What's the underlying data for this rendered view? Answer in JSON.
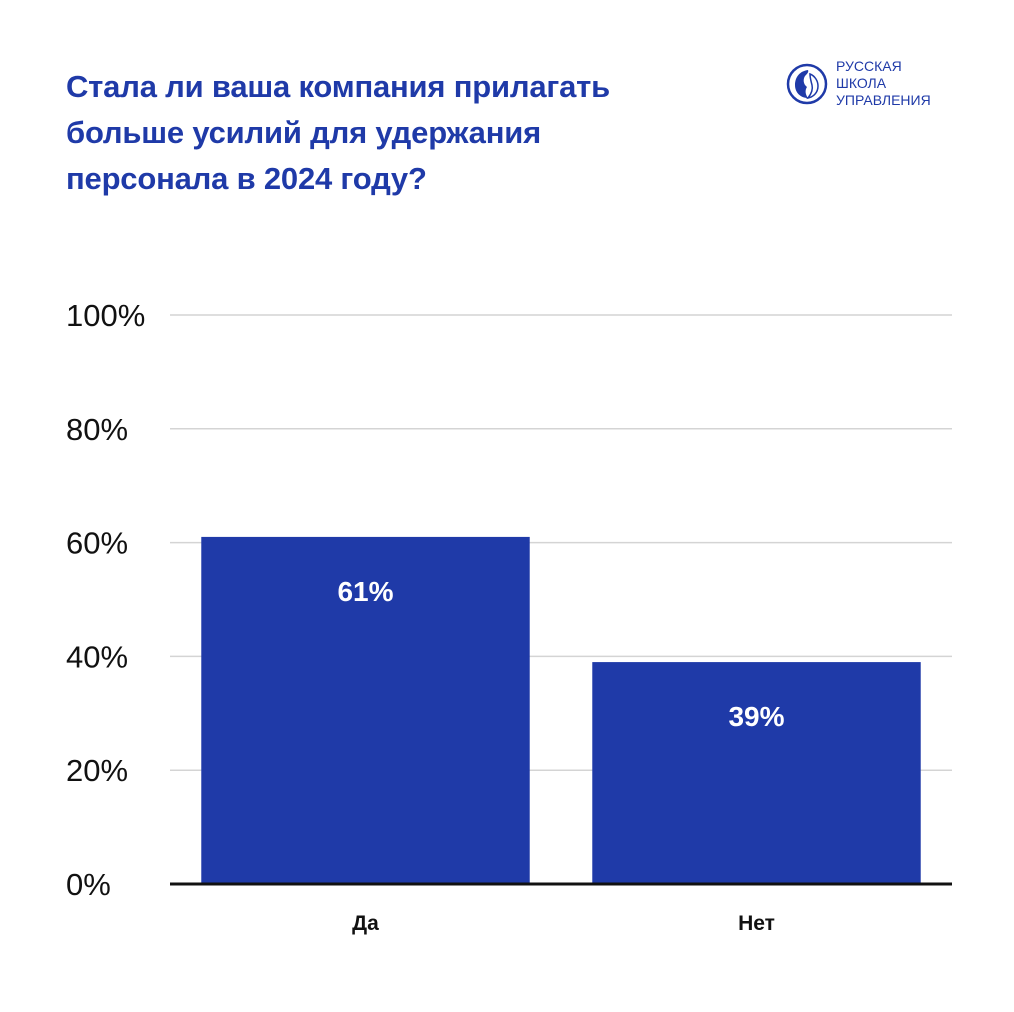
{
  "header": {
    "title_lines": [
      "Стала ли ваша компания прилагать",
      "больше усилий для удержания",
      "персонала в 2024 году?"
    ]
  },
  "logo": {
    "lines": [
      "РУССКАЯ",
      "ШКОЛА",
      "УПРАВЛЕНИЯ"
    ]
  },
  "colors": {
    "bar": "#1f3aa8",
    "title": "#1f3aa8",
    "grid": "#d4d4d4",
    "axis": "#111111",
    "text": "#111111"
  },
  "chart_data": {
    "type": "bar",
    "categories": [
      "Да",
      "Нет"
    ],
    "values": [
      61,
      39
    ],
    "data_labels": [
      "61%",
      "39%"
    ],
    "title": "Стала ли ваша компания прилагать больше усилий для удержания персонала в 2024 году?",
    "xlabel": "",
    "ylabel": "",
    "ylim": [
      0,
      100
    ],
    "yticks": [
      0,
      20,
      40,
      60,
      80,
      100
    ],
    "ytick_labels": [
      "0%",
      "20%",
      "40%",
      "60%",
      "80%",
      "100%"
    ],
    "grid": true,
    "legend": "none"
  }
}
